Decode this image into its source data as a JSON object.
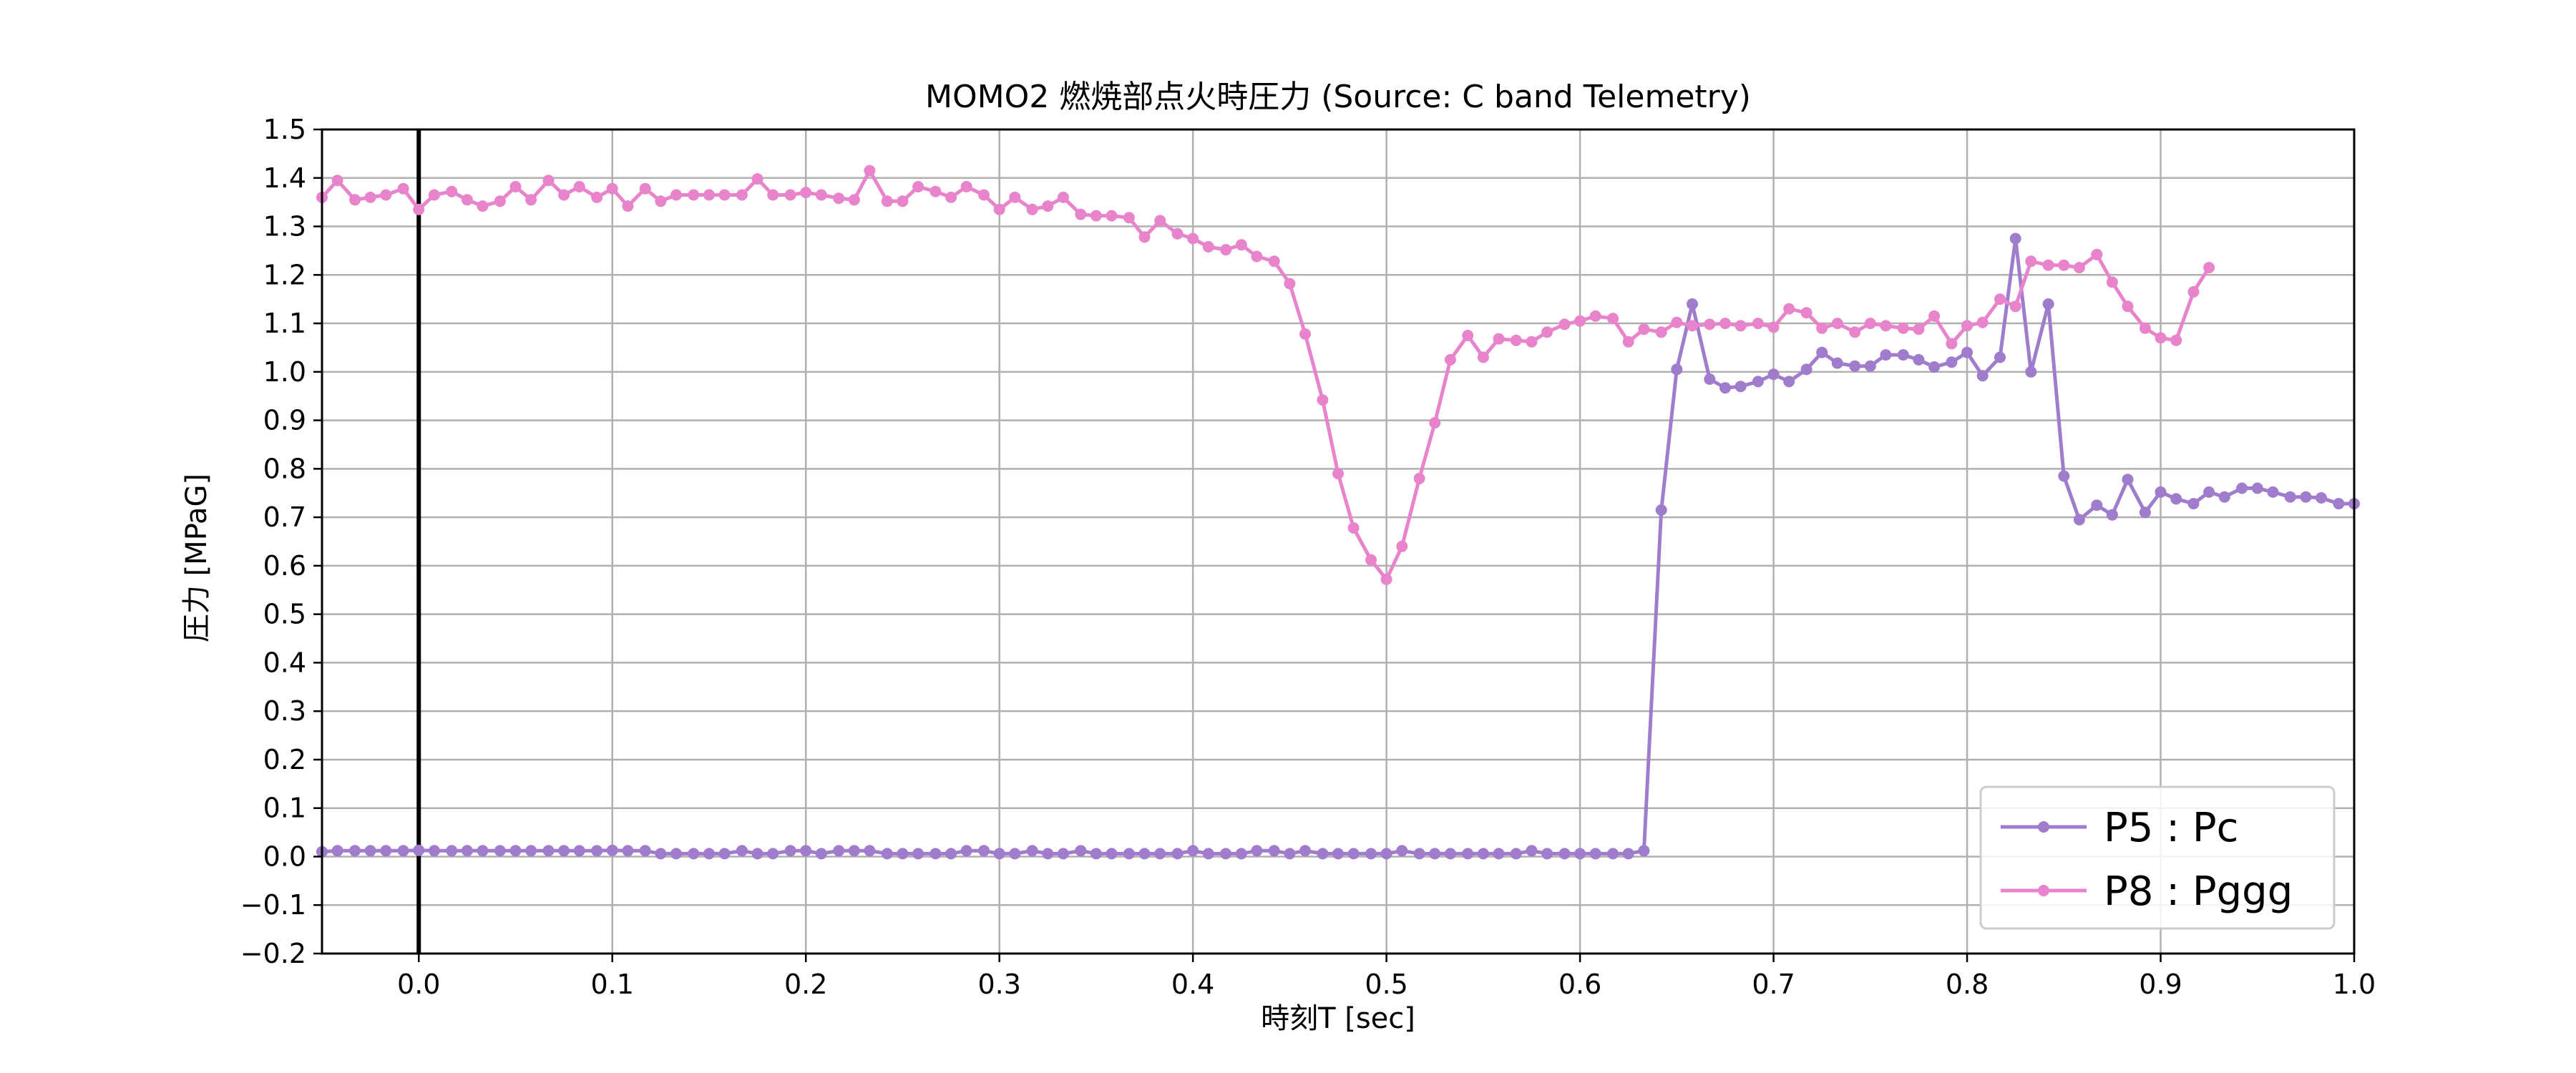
{
  "chart_data": {
    "type": "line",
    "title": "MOMO2 燃焼部点火時圧力 (Source: C band Telemetry)",
    "xlabel": "時刻T [sec]",
    "ylabel": "圧力 [MPaG]",
    "xlim": [
      -0.05,
      1.0
    ],
    "ylim": [
      -0.2,
      1.5
    ],
    "xticks": [
      0.0,
      0.1,
      0.2,
      0.3,
      0.4,
      0.5,
      0.6,
      0.7,
      0.8,
      0.9,
      1.0
    ],
    "xtick_labels": [
      "0.0",
      "0.1",
      "0.2",
      "0.3",
      "0.4",
      "0.5",
      "0.6",
      "0.7",
      "0.8",
      "0.9",
      "1.0"
    ],
    "yticks": [
      -0.2,
      -0.1,
      0.0,
      0.1,
      0.2,
      0.3,
      0.4,
      0.5,
      0.6,
      0.7,
      0.8,
      0.9,
      1.0,
      1.1,
      1.2,
      1.3,
      1.4,
      1.5
    ],
    "ytick_labels": [
      "−0.2",
      "−0.1",
      "0.0",
      "0.1",
      "0.2",
      "0.3",
      "0.4",
      "0.5",
      "0.6",
      "0.7",
      "0.8",
      "0.9",
      "1.0",
      "1.1",
      "1.2",
      "1.3",
      "1.4",
      "1.5"
    ],
    "grid": true,
    "vline_x": 0.0,
    "legend_position": "lower-right",
    "series": [
      {
        "name": "P5 : Pc",
        "color": "#a07ccc",
        "points": [
          [
            -0.05,
            0.01
          ],
          [
            -0.042,
            0.012
          ],
          [
            -0.033,
            0.012
          ],
          [
            -0.025,
            0.012
          ],
          [
            -0.017,
            0.012
          ],
          [
            -0.008,
            0.012
          ],
          [
            0.0,
            0.013
          ],
          [
            0.008,
            0.012
          ],
          [
            0.017,
            0.012
          ],
          [
            0.025,
            0.012
          ],
          [
            0.033,
            0.012
          ],
          [
            0.042,
            0.012
          ],
          [
            0.05,
            0.012
          ],
          [
            0.058,
            0.012
          ],
          [
            0.067,
            0.012
          ],
          [
            0.075,
            0.012
          ],
          [
            0.083,
            0.012
          ],
          [
            0.092,
            0.012
          ],
          [
            0.1,
            0.013
          ],
          [
            0.108,
            0.012
          ],
          [
            0.117,
            0.012
          ],
          [
            0.125,
            0.006
          ],
          [
            0.133,
            0.006
          ],
          [
            0.142,
            0.006
          ],
          [
            0.15,
            0.006
          ],
          [
            0.158,
            0.006
          ],
          [
            0.167,
            0.012
          ],
          [
            0.175,
            0.006
          ],
          [
            0.183,
            0.006
          ],
          [
            0.192,
            0.012
          ],
          [
            0.2,
            0.012
          ],
          [
            0.208,
            0.006
          ],
          [
            0.217,
            0.012
          ],
          [
            0.225,
            0.012
          ],
          [
            0.233,
            0.012
          ],
          [
            0.242,
            0.006
          ],
          [
            0.25,
            0.006
          ],
          [
            0.258,
            0.006
          ],
          [
            0.267,
            0.006
          ],
          [
            0.275,
            0.006
          ],
          [
            0.283,
            0.012
          ],
          [
            0.292,
            0.012
          ],
          [
            0.3,
            0.006
          ],
          [
            0.308,
            0.006
          ],
          [
            0.317,
            0.012
          ],
          [
            0.325,
            0.006
          ],
          [
            0.333,
            0.006
          ],
          [
            0.342,
            0.012
          ],
          [
            0.35,
            0.006
          ],
          [
            0.358,
            0.006
          ],
          [
            0.367,
            0.006
          ],
          [
            0.375,
            0.006
          ],
          [
            0.383,
            0.006
          ],
          [
            0.392,
            0.006
          ],
          [
            0.4,
            0.012
          ],
          [
            0.408,
            0.006
          ],
          [
            0.417,
            0.006
          ],
          [
            0.425,
            0.006
          ],
          [
            0.433,
            0.012
          ],
          [
            0.442,
            0.012
          ],
          [
            0.45,
            0.006
          ],
          [
            0.458,
            0.012
          ],
          [
            0.467,
            0.006
          ],
          [
            0.475,
            0.006
          ],
          [
            0.483,
            0.006
          ],
          [
            0.492,
            0.006
          ],
          [
            0.5,
            0.006
          ],
          [
            0.508,
            0.012
          ],
          [
            0.517,
            0.006
          ],
          [
            0.525,
            0.006
          ],
          [
            0.533,
            0.006
          ],
          [
            0.542,
            0.006
          ],
          [
            0.55,
            0.006
          ],
          [
            0.558,
            0.006
          ],
          [
            0.567,
            0.006
          ],
          [
            0.575,
            0.012
          ],
          [
            0.583,
            0.006
          ],
          [
            0.592,
            0.006
          ],
          [
            0.6,
            0.006
          ],
          [
            0.608,
            0.006
          ],
          [
            0.617,
            0.006
          ],
          [
            0.625,
            0.006
          ],
          [
            0.633,
            0.012
          ],
          [
            0.642,
            0.715
          ],
          [
            0.65,
            1.005
          ],
          [
            0.658,
            1.14
          ],
          [
            0.667,
            0.985
          ],
          [
            0.675,
            0.967
          ],
          [
            0.683,
            0.97
          ],
          [
            0.692,
            0.98
          ],
          [
            0.7,
            0.995
          ],
          [
            0.708,
            0.98
          ],
          [
            0.717,
            1.005
          ],
          [
            0.725,
            1.04
          ],
          [
            0.733,
            1.018
          ],
          [
            0.742,
            1.012
          ],
          [
            0.75,
            1.012
          ],
          [
            0.758,
            1.035
          ],
          [
            0.767,
            1.035
          ],
          [
            0.775,
            1.025
          ],
          [
            0.783,
            1.01
          ],
          [
            0.792,
            1.02
          ],
          [
            0.8,
            1.04
          ],
          [
            0.808,
            0.992
          ],
          [
            0.817,
            1.03
          ],
          [
            0.825,
            1.275
          ],
          [
            0.833,
            1.0
          ],
          [
            0.842,
            1.14
          ],
          [
            0.85,
            0.785
          ],
          [
            0.858,
            0.695
          ],
          [
            0.867,
            0.725
          ],
          [
            0.875,
            0.705
          ],
          [
            0.883,
            0.778
          ],
          [
            0.892,
            0.71
          ],
          [
            0.9,
            0.752
          ],
          [
            0.908,
            0.738
          ],
          [
            0.917,
            0.728
          ],
          [
            0.925,
            0.752
          ],
          [
            0.933,
            0.742
          ],
          [
            0.942,
            0.76
          ],
          [
            0.95,
            0.76
          ],
          [
            0.958,
            0.752
          ],
          [
            0.967,
            0.742
          ],
          [
            0.975,
            0.742
          ],
          [
            0.983,
            0.74
          ],
          [
            0.992,
            0.728
          ],
          [
            1.0,
            0.728
          ]
        ]
      },
      {
        "name": "P8 : Pggg",
        "color": "#e884cc",
        "points": [
          [
            -0.05,
            1.36
          ],
          [
            -0.042,
            1.395
          ],
          [
            -0.033,
            1.355
          ],
          [
            -0.025,
            1.36
          ],
          [
            -0.017,
            1.365
          ],
          [
            -0.008,
            1.378
          ],
          [
            0.0,
            1.335
          ],
          [
            0.008,
            1.365
          ],
          [
            0.017,
            1.372
          ],
          [
            0.025,
            1.355
          ],
          [
            0.033,
            1.342
          ],
          [
            0.042,
            1.352
          ],
          [
            0.05,
            1.382
          ],
          [
            0.058,
            1.355
          ],
          [
            0.067,
            1.395
          ],
          [
            0.075,
            1.365
          ],
          [
            0.083,
            1.382
          ],
          [
            0.092,
            1.36
          ],
          [
            0.1,
            1.378
          ],
          [
            0.108,
            1.342
          ],
          [
            0.117,
            1.378
          ],
          [
            0.125,
            1.352
          ],
          [
            0.133,
            1.365
          ],
          [
            0.142,
            1.365
          ],
          [
            0.15,
            1.365
          ],
          [
            0.158,
            1.365
          ],
          [
            0.167,
            1.365
          ],
          [
            0.175,
            1.398
          ],
          [
            0.183,
            1.365
          ],
          [
            0.192,
            1.365
          ],
          [
            0.2,
            1.37
          ],
          [
            0.208,
            1.365
          ],
          [
            0.217,
            1.358
          ],
          [
            0.225,
            1.355
          ],
          [
            0.233,
            1.415
          ],
          [
            0.242,
            1.352
          ],
          [
            0.25,
            1.352
          ],
          [
            0.258,
            1.382
          ],
          [
            0.267,
            1.372
          ],
          [
            0.275,
            1.36
          ],
          [
            0.283,
            1.382
          ],
          [
            0.292,
            1.365
          ],
          [
            0.3,
            1.335
          ],
          [
            0.308,
            1.36
          ],
          [
            0.317,
            1.335
          ],
          [
            0.325,
            1.342
          ],
          [
            0.333,
            1.36
          ],
          [
            0.342,
            1.325
          ],
          [
            0.35,
            1.322
          ],
          [
            0.358,
            1.322
          ],
          [
            0.367,
            1.318
          ],
          [
            0.375,
            1.278
          ],
          [
            0.383,
            1.312
          ],
          [
            0.392,
            1.285
          ],
          [
            0.4,
            1.275
          ],
          [
            0.408,
            1.258
          ],
          [
            0.417,
            1.252
          ],
          [
            0.425,
            1.262
          ],
          [
            0.433,
            1.238
          ],
          [
            0.442,
            1.228
          ],
          [
            0.45,
            1.182
          ],
          [
            0.458,
            1.078
          ],
          [
            0.467,
            0.942
          ],
          [
            0.475,
            0.79
          ],
          [
            0.483,
            0.678
          ],
          [
            0.492,
            0.612
          ],
          [
            0.5,
            0.572
          ],
          [
            0.508,
            0.64
          ],
          [
            0.517,
            0.78
          ],
          [
            0.525,
            0.895
          ],
          [
            0.533,
            1.025
          ],
          [
            0.542,
            1.075
          ],
          [
            0.55,
            1.03
          ],
          [
            0.558,
            1.068
          ],
          [
            0.567,
            1.065
          ],
          [
            0.575,
            1.062
          ],
          [
            0.583,
            1.082
          ],
          [
            0.592,
            1.098
          ],
          [
            0.6,
            1.105
          ],
          [
            0.608,
            1.115
          ],
          [
            0.617,
            1.11
          ],
          [
            0.625,
            1.062
          ],
          [
            0.633,
            1.088
          ],
          [
            0.642,
            1.082
          ],
          [
            0.65,
            1.102
          ],
          [
            0.658,
            1.095
          ],
          [
            0.667,
            1.098
          ],
          [
            0.675,
            1.1
          ],
          [
            0.683,
            1.095
          ],
          [
            0.692,
            1.1
          ],
          [
            0.7,
            1.092
          ],
          [
            0.708,
            1.13
          ],
          [
            0.717,
            1.122
          ],
          [
            0.725,
            1.09
          ],
          [
            0.733,
            1.1
          ],
          [
            0.742,
            1.082
          ],
          [
            0.75,
            1.1
          ],
          [
            0.758,
            1.095
          ],
          [
            0.767,
            1.09
          ],
          [
            0.775,
            1.088
          ],
          [
            0.783,
            1.115
          ],
          [
            0.792,
            1.058
          ],
          [
            0.8,
            1.095
          ],
          [
            0.808,
            1.102
          ],
          [
            0.817,
            1.15
          ],
          [
            0.825,
            1.135
          ],
          [
            0.833,
            1.228
          ],
          [
            0.842,
            1.22
          ],
          [
            0.85,
            1.22
          ],
          [
            0.858,
            1.215
          ],
          [
            0.867,
            1.242
          ],
          [
            0.875,
            1.185
          ],
          [
            0.883,
            1.135
          ],
          [
            0.892,
            1.09
          ],
          [
            0.9,
            1.07
          ],
          [
            0.908,
            1.065
          ],
          [
            0.917,
            1.165
          ],
          [
            0.925,
            1.215
          ]
        ]
      }
    ]
  }
}
